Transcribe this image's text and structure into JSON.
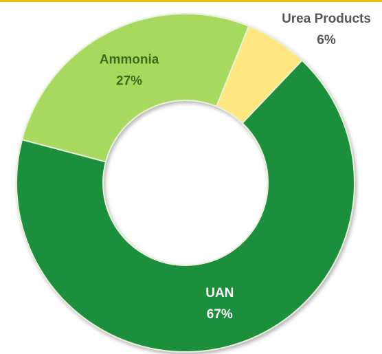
{
  "chart_data": {
    "type": "donut",
    "categories": [
      "Urea Products",
      "UAN",
      "Ammonia"
    ],
    "values": [
      6,
      67,
      27
    ],
    "value_labels": [
      "6%",
      "67%",
      "27%"
    ],
    "colors": [
      "#ffe680",
      "#1f8f3c",
      "#a8d95e"
    ]
  }
}
